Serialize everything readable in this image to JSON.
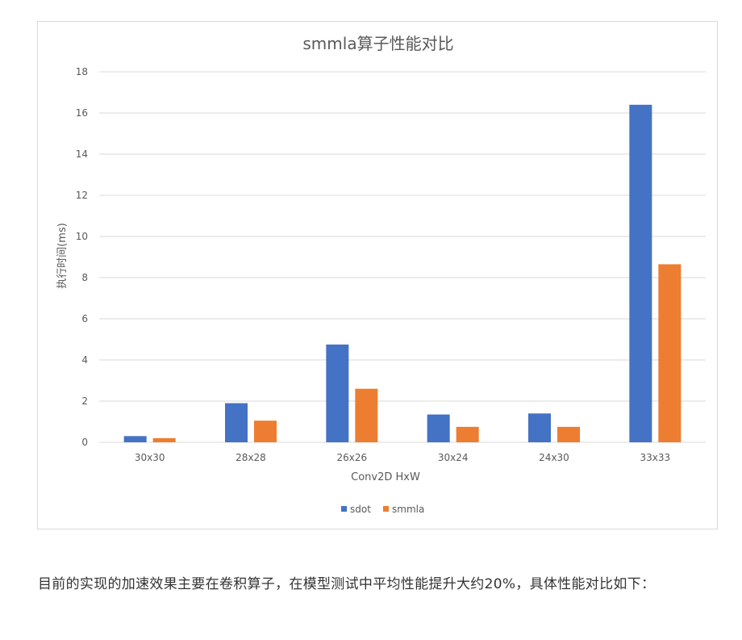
{
  "chart_data": {
    "type": "bar",
    "title": "smmla算子性能对比",
    "xlabel": "Conv2D HxW",
    "ylabel": "执行时间(ms)",
    "ylim": [
      0,
      18
    ],
    "yticks": [
      0,
      2,
      4,
      6,
      8,
      10,
      12,
      14,
      16,
      18
    ],
    "categories": [
      "30x30",
      "28x28",
      "26x26",
      "30x24",
      "24x30",
      "33x33"
    ],
    "series": [
      {
        "name": "sdot",
        "color": "#4472c4",
        "values": [
          0.3,
          1.9,
          4.75,
          1.35,
          1.4,
          16.4
        ]
      },
      {
        "name": "smmla",
        "color": "#ed7d31",
        "values": [
          0.2,
          1.05,
          2.6,
          0.75,
          0.75,
          8.65
        ]
      }
    ],
    "grid": true,
    "legend": "bottom-center"
  },
  "caption": "目前的实现的加速效果主要在卷积算子，在模型测试中平均性能提升大约20%，具体性能对比如下："
}
